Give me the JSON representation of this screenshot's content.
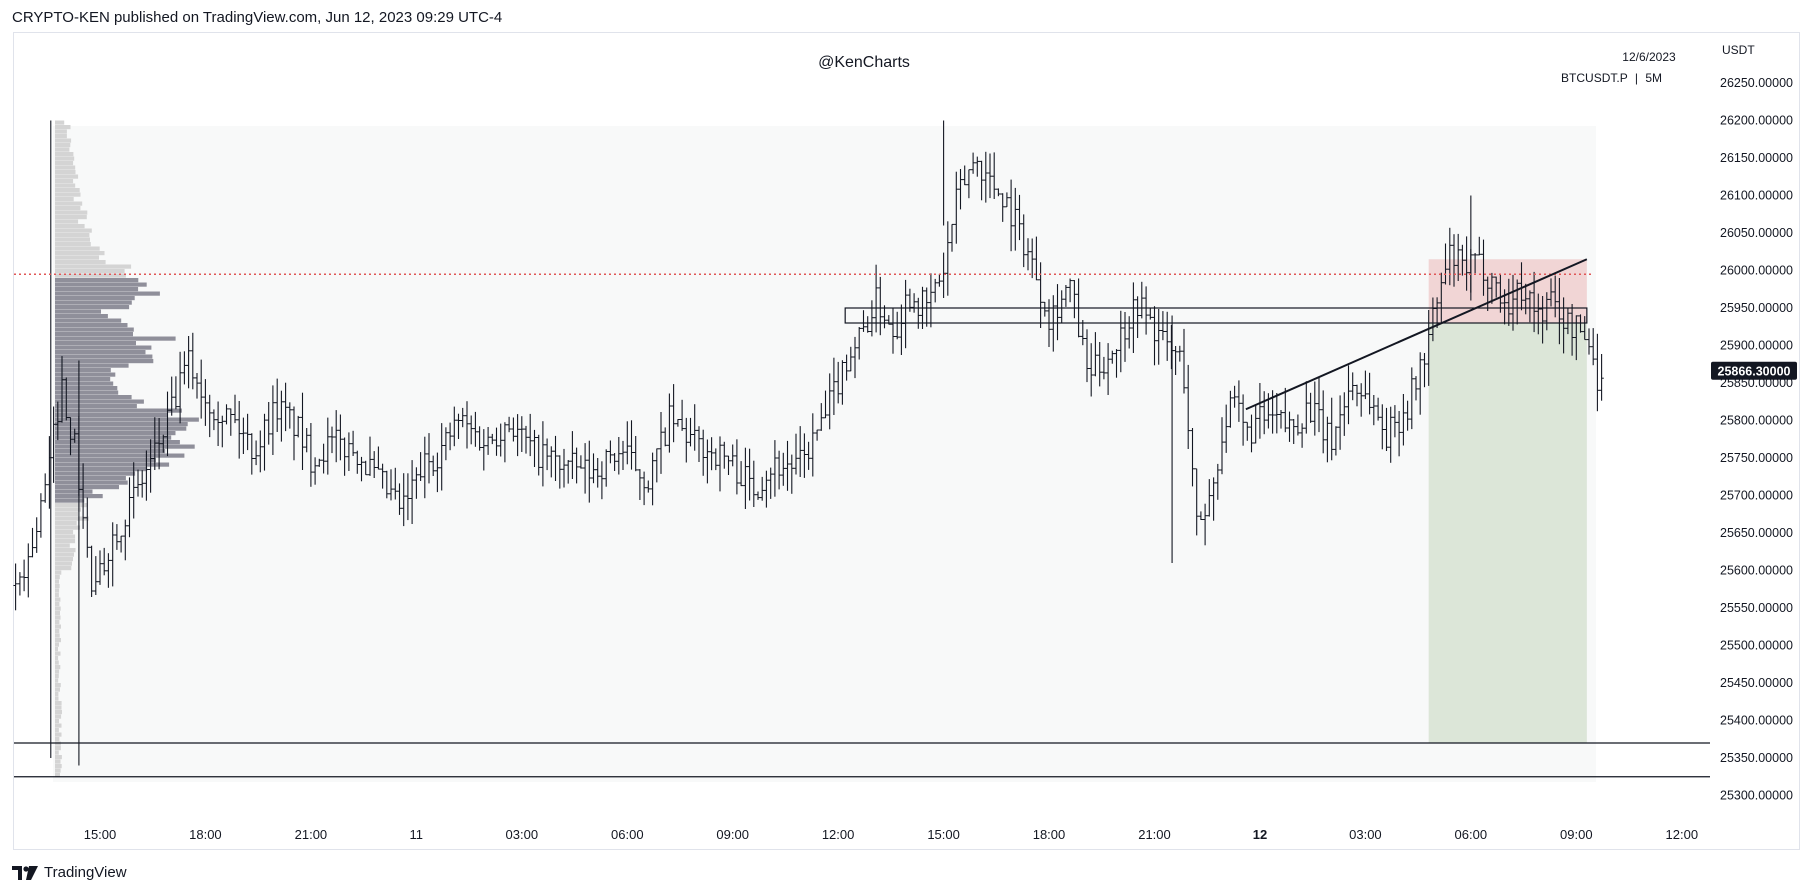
{
  "header": {
    "published_text": "CRYPTO-KEN published on TradingView.com, Jun 12, 2023 09:29 UTC-4"
  },
  "watermark": "@KenCharts",
  "info": {
    "date": "12/6/2023",
    "symbol": "BTCUSDT.P",
    "separator": "|",
    "timeframe": "5M"
  },
  "footer": {
    "brand": "TradingView"
  },
  "colors": {
    "candle": "#131722",
    "hline": "#e05656",
    "long_zone": "#dce6d8",
    "stop_zone": "#f0d0d0",
    "profile_va": "#8f8f9a",
    "profile_out": "#d4d4d4"
  },
  "chart_data": {
    "type": "line",
    "subtype": "ohlc-bars",
    "xlabel": "",
    "ylabel": "",
    "currency": "USDT",
    "ylim": [
      25270,
      26300
    ],
    "y_ticks": [
      "26250.00000",
      "26200.00000",
      "26150.00000",
      "26100.00000",
      "26050.00000",
      "26000.00000",
      "25950.00000",
      "25900.00000",
      "25850.00000",
      "25800.00000",
      "25750.00000",
      "25700.00000",
      "25650.00000",
      "25600.00000",
      "25550.00000",
      "25500.00000",
      "25450.00000",
      "25400.00000",
      "25350.00000",
      "25300.00000"
    ],
    "y_tick_values": [
      26250,
      26200,
      26150,
      26100,
      26050,
      26000,
      25950,
      25900,
      25850,
      25800,
      25750,
      25700,
      25650,
      25600,
      25550,
      25500,
      25450,
      25400,
      25350,
      25300
    ],
    "x_ticks": [
      "15:00",
      "18:00",
      "21:00",
      "11",
      "03:00",
      "06:00",
      "09:00",
      "12:00",
      "15:00",
      "18:00",
      "21:00",
      "12",
      "03:00",
      "06:00",
      "09:00",
      "12:00"
    ],
    "x_tick_hours": [
      15,
      18,
      21,
      24,
      27,
      30,
      33,
      36,
      39,
      42,
      45,
      48,
      51,
      54,
      57,
      60
    ],
    "x_tick_bold": [
      false,
      false,
      false,
      false,
      false,
      false,
      false,
      false,
      false,
      false,
      false,
      true,
      false,
      false,
      false,
      false
    ],
    "last_price": "25866.30000",
    "last_price_value": 25866.3,
    "grid": false,
    "legend": "none",
    "path_hours": [
      12.6,
      13.0,
      13.5,
      13.9,
      14.3,
      14.8,
      15.3,
      16.0,
      16.6,
      17.1,
      17.5,
      18.0,
      18.8,
      19.4,
      20.0,
      20.6,
      21.0,
      21.6,
      22.3,
      22.9,
      23.6,
      24.2,
      24.7,
      25.2,
      26.0,
      26.6,
      27.3,
      28.2,
      29.0,
      29.8,
      30.6,
      31.2,
      31.9,
      32.8,
      33.6,
      34.1,
      34.9,
      35.6,
      36.2,
      36.6,
      37.1,
      37.6,
      38.0,
      38.5,
      39.0,
      39.4,
      39.9,
      40.3,
      40.7,
      41.1,
      41.6,
      42.0,
      42.6,
      43.1,
      43.6,
      44.0,
      44.5,
      44.9,
      45.3,
      45.8,
      46.2,
      46.6,
      47.0,
      47.3,
      47.6,
      48.0,
      48.4,
      48.9,
      49.4,
      50.0,
      50.6,
      51.1,
      51.6,
      52.2,
      52.7,
      53.0,
      53.4,
      53.8,
      54.2,
      54.6,
      55.0,
      55.5,
      55.9,
      56.3,
      56.7,
      57.1,
      57.4,
      57.6,
      57.8
    ],
    "path_prices": [
      25580,
      25620,
      25720,
      25850,
      25760,
      25560,
      25640,
      25700,
      25760,
      25820,
      25880,
      25830,
      25800,
      25760,
      25820,
      25790,
      25750,
      25770,
      25760,
      25720,
      25680,
      25740,
      25760,
      25800,
      25770,
      25800,
      25760,
      25740,
      25730,
      25760,
      25720,
      25800,
      25770,
      25750,
      25710,
      25740,
      25740,
      25800,
      25880,
      25910,
      25960,
      25920,
      25970,
      25950,
      26000,
      26100,
      26150,
      26120,
      26100,
      26060,
      26000,
      25940,
      25980,
      25860,
      25880,
      25910,
      25960,
      25930,
      25900,
      25880,
      25660,
      25700,
      25800,
      25820,
      25780,
      25800,
      25800,
      25790,
      25820,
      25770,
      25850,
      25830,
      25780,
      25820,
      25890,
      25950,
      26020,
      26000,
      26010,
      25990,
      25950,
      25980,
      25940,
      25960,
      25930,
      25920,
      25900,
      25860,
      25840
    ],
    "annotations": {
      "resistance_line": 25995,
      "box_top": 25950,
      "box_bottom": 25930,
      "box_start_hour": 36.2,
      "box_end_hour": 57.3,
      "support_lines": [
        25370,
        25325
      ],
      "trendline": {
        "start": [
          47.6,
          25815
        ],
        "end": [
          57.3,
          26015
        ]
      },
      "position": {
        "start_hour": 52.8,
        "end_hour": 57.3,
        "entry": 25930,
        "stop": 26015,
        "target": 25370
      }
    }
  }
}
